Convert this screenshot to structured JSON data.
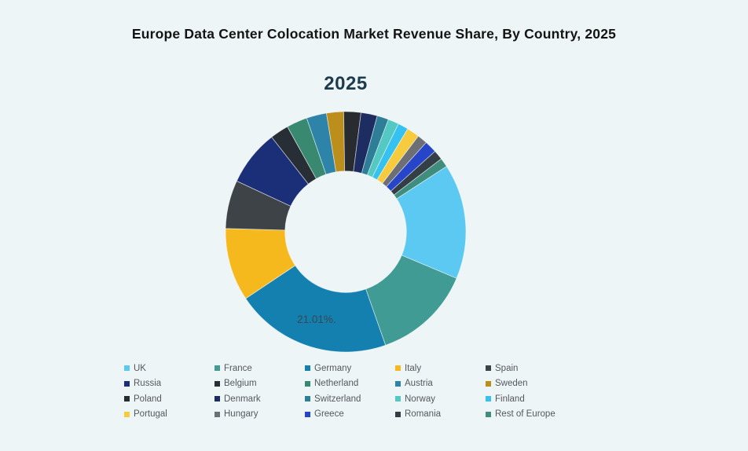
{
  "page": {
    "background_color": "#EDF5F7"
  },
  "header": {
    "title": "Europe Data Center Colocation Market Revenue Share, By Country, 2025"
  },
  "chart_data": {
    "type": "pie",
    "variant": "donut",
    "title": "2025",
    "legend_position": "bottom",
    "start_angle_deg": 57,
    "inner_radius_ratio": 0.505,
    "data_label": {
      "series": "Germany",
      "text": "21.01%."
    },
    "series": [
      {
        "name": "UK",
        "value": 15.5,
        "color": "#5BC9F2"
      },
      {
        "name": "France",
        "value": 13.3,
        "color": "#3F9B93"
      },
      {
        "name": "Germany",
        "value": 21.01,
        "color": "#1480B0"
      },
      {
        "name": "Italy",
        "value": 9.8,
        "color": "#F5B91E"
      },
      {
        "name": "Spain",
        "value": 6.5,
        "color": "#3E4347"
      },
      {
        "name": "Russia",
        "value": 7.5,
        "color": "#1B2F78"
      },
      {
        "name": "Belgium",
        "value": 2.5,
        "color": "#272E35"
      },
      {
        "name": "Netherland",
        "value": 2.8,
        "color": "#398970"
      },
      {
        "name": "Austria",
        "value": 2.7,
        "color": "#2E84A8"
      },
      {
        "name": "Sweden",
        "value": 2.3,
        "color": "#BC8E1C"
      },
      {
        "name": "Poland",
        "value": 2.3,
        "color": "#282C30"
      },
      {
        "name": "Denmark",
        "value": 2.2,
        "color": "#1D2D62"
      },
      {
        "name": "Switzerland",
        "value": 1.55,
        "color": "#2F7E98"
      },
      {
        "name": "Norway",
        "value": 1.45,
        "color": "#54C8C2"
      },
      {
        "name": "Finland",
        "value": 1.4,
        "color": "#36C2F0"
      },
      {
        "name": "Portugal",
        "value": 1.7,
        "color": "#F7CB3E"
      },
      {
        "name": "Hungary",
        "value": 1.35,
        "color": "#6C7074"
      },
      {
        "name": "Greece",
        "value": 1.65,
        "color": "#2745C8"
      },
      {
        "name": "Romania",
        "value": 1.3,
        "color": "#343E46"
      },
      {
        "name": "Rest of Europe",
        "value": 1.2,
        "color": "#3F8E7D"
      }
    ]
  }
}
